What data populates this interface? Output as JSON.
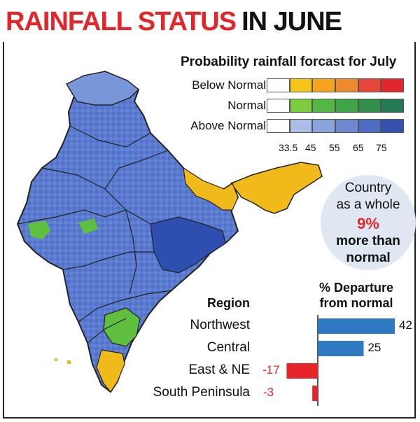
{
  "header": {
    "title_red": "RAINFALL STATUS",
    "title_black": "IN JUNE"
  },
  "legend": {
    "title": "Probability rainfall forcast for July",
    "rows": [
      {
        "label": "Below Normal",
        "colors": [
          "#ffffff",
          "#f5c518",
          "#f4a41f",
          "#ef8a2a",
          "#e8463a",
          "#e3262e"
        ]
      },
      {
        "label": "Normal",
        "colors": [
          "#ffffff",
          "#7ccd3c",
          "#52b843",
          "#3ea447",
          "#2f8f4a",
          "#237a53"
        ]
      },
      {
        "label": "Above Normal",
        "colors": [
          "#ffffff",
          "#a9bde6",
          "#8aa3dc",
          "#6d88d0",
          "#4f6cc3",
          "#3552b1"
        ]
      }
    ],
    "ticks": [
      "33.5",
      "45",
      "55",
      "65",
      "75"
    ]
  },
  "country": {
    "line1": "Country",
    "line2": "as a whole",
    "percent": "9%",
    "line3": "more than",
    "line4": "normal"
  },
  "chart_data": {
    "type": "bar",
    "orientation": "horizontal",
    "title": "% Departure from normal",
    "category_label": "Region",
    "categories": [
      "Northwest",
      "Central",
      "East & NE",
      "South Peninsula"
    ],
    "values": [
      42,
      25,
      -17,
      -3
    ],
    "value_labels": [
      "42",
      "25",
      "-17",
      "-3"
    ],
    "positive_color": "#2f78c4",
    "negative_color": "#e4262b"
  },
  "map": {
    "colors": {
      "above_normal": "#4f71c9",
      "above_dark": "#2e4fb0",
      "above_light": "#a9bde6",
      "normal": "#5fbf3f",
      "below": "#f0bb1a",
      "outline": "#222222"
    }
  }
}
